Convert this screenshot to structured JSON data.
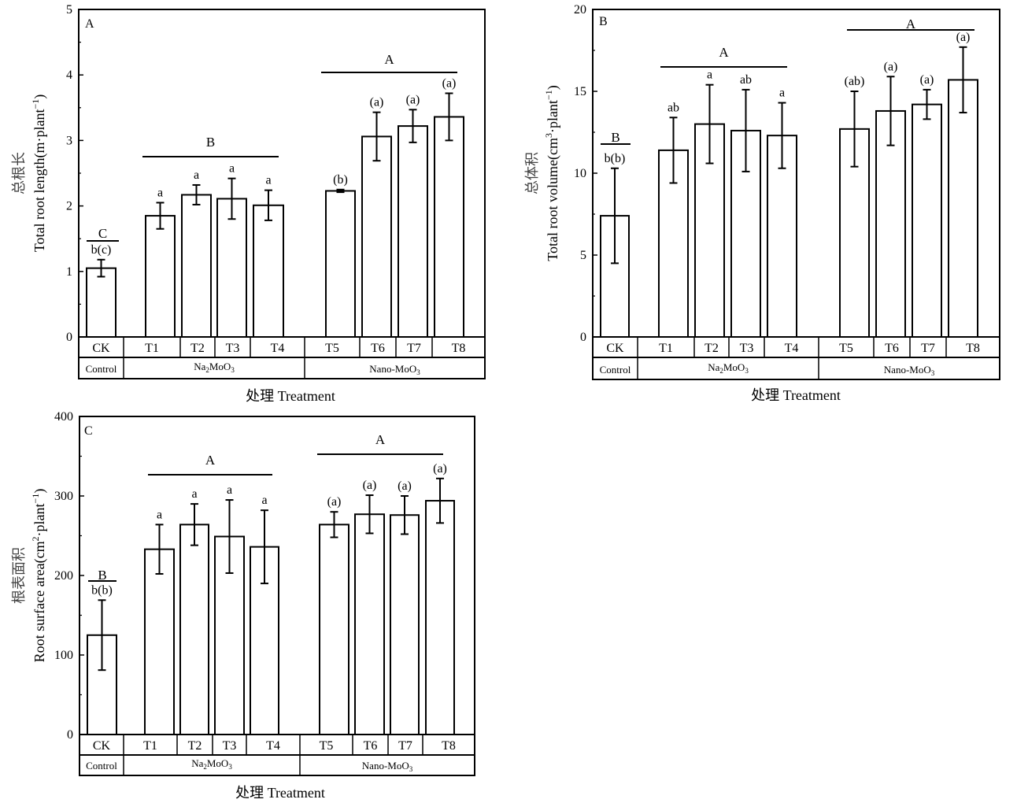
{
  "figure": {
    "panels": [
      {
        "id": "A",
        "letter": "A",
        "ylabel_cn": "总根长",
        "ylabel_en": "Total root length(m·plant",
        "ylabel_sup": "−1",
        "ylabel_tail": ")",
        "xlabel": "处理 Treatment"
      },
      {
        "id": "B",
        "letter": "B",
        "ylabel_cn": "总体积",
        "ylabel_en": "Total root volume(cm",
        "ylabel_sup": "3",
        "ylabel_tail": "·plant",
        "ylabel_sup2": "−1",
        "ylabel_tail2": ")",
        "xlabel": "处理 Treatment"
      },
      {
        "id": "C",
        "letter": "C",
        "ylabel_cn": "根表面积",
        "ylabel_en": "Root surface area(cm",
        "ylabel_sup": "2",
        "ylabel_tail": "·plant",
        "ylabel_sup2": "−1",
        "ylabel_tail2": ")",
        "xlabel": "处理 Treatment"
      }
    ]
  },
  "chart_data": [
    {
      "type": "bar",
      "title": "A",
      "xlabel": "处理 Treatment",
      "ylabel": "总根长 Total root length(m·plant−1)",
      "ylim": [
        0,
        5
      ],
      "yticks": [
        "0",
        "1",
        "2",
        "3",
        "4",
        "5"
      ],
      "categories": [
        "CK",
        "T1",
        "T2",
        "T3",
        "T4",
        "T5",
        "T6",
        "T7",
        "T8"
      ],
      "values": [
        1.05,
        1.85,
        2.17,
        2.11,
        2.01,
        2.23,
        3.06,
        3.22,
        3.36
      ],
      "errors": [
        0.13,
        0.2,
        0.15,
        0.31,
        0.23,
        0.02,
        0.37,
        0.25,
        0.36
      ],
      "significance": [
        "b(c)",
        "a",
        "a",
        "a",
        "a",
        "(b)",
        "(a)",
        "(a)",
        "(a)"
      ],
      "groups": [
        "Control",
        "Na2MoO3",
        "Nano-MoO3"
      ],
      "group_letters": [
        "C",
        "B",
        "A"
      ]
    },
    {
      "type": "bar",
      "title": "B",
      "xlabel": "处理 Treatment",
      "ylabel": "总体积 Total root volume(cm3·plant−1)",
      "ylim": [
        0,
        20
      ],
      "yticks": [
        "0",
        "5",
        "10",
        "15",
        "20"
      ],
      "categories": [
        "CK",
        "T1",
        "T2",
        "T3",
        "T4",
        "T5",
        "T6",
        "T7",
        "T8"
      ],
      "values": [
        7.4,
        11.4,
        13.0,
        12.6,
        12.3,
        12.7,
        13.8,
        14.2,
        15.7
      ],
      "errors": [
        2.9,
        2.0,
        2.4,
        2.5,
        2.0,
        2.3,
        2.1,
        0.9,
        2.0
      ],
      "significance": [
        "b(b)",
        "ab",
        "a",
        "ab",
        "a",
        "(ab)",
        "(a)",
        "(a)",
        "(a)"
      ],
      "groups": [
        "Control",
        "Na2MoO3",
        "Nano-MoO3"
      ],
      "group_letters": [
        "B",
        "A",
        "A"
      ]
    },
    {
      "type": "bar",
      "title": "C",
      "xlabel": "处理 Treatment",
      "ylabel": "根表面积 Root surface area(cm2·plant−1)",
      "ylim": [
        0,
        400
      ],
      "yticks": [
        "0",
        "100",
        "200",
        "300",
        "400"
      ],
      "categories": [
        "CK",
        "T1",
        "T2",
        "T3",
        "T4",
        "T5",
        "T6",
        "T7",
        "T8"
      ],
      "values": [
        125,
        233,
        264,
        249,
        236,
        264,
        277,
        276,
        294
      ],
      "errors": [
        44,
        31,
        26,
        46,
        46,
        16,
        24,
        24,
        28
      ],
      "significance": [
        "b(b)",
        "a",
        "a",
        "a",
        "a",
        "(a)",
        "(a)",
        "(a)",
        "(a)"
      ],
      "groups": [
        "Control",
        "Na2MoO3",
        "Nano-MoO3"
      ],
      "group_letters": [
        "B",
        "A",
        "A"
      ]
    }
  ]
}
